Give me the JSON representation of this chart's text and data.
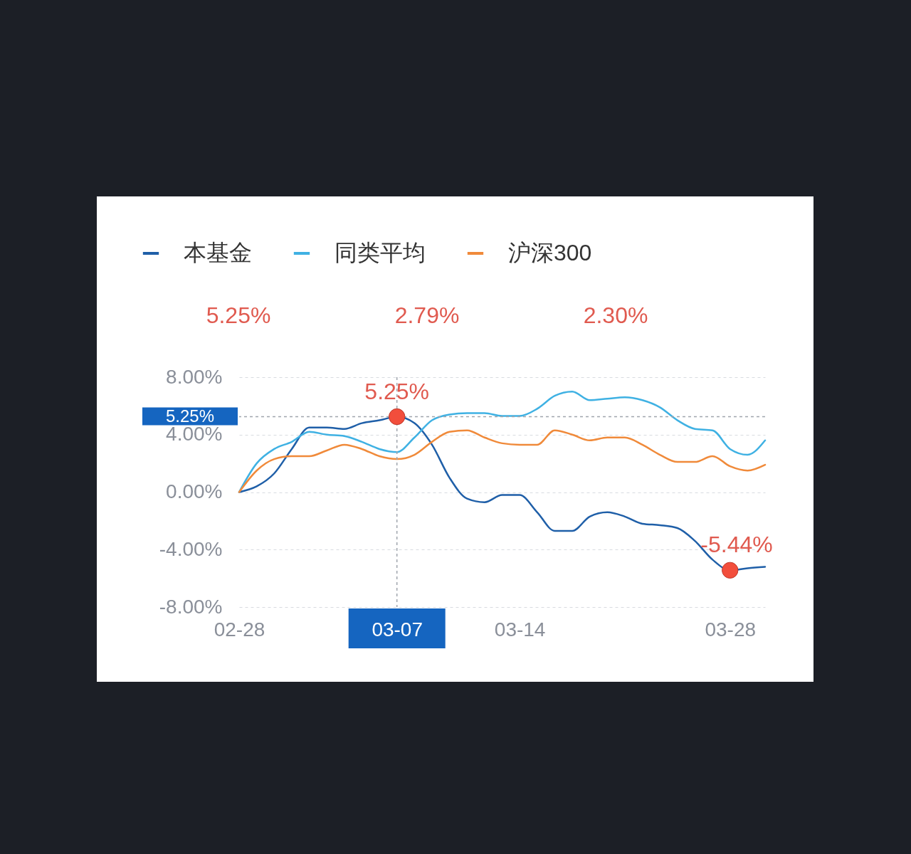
{
  "chart_data": {
    "type": "line",
    "categories": [
      "02-28",
      null,
      null,
      null,
      null,
      null,
      null,
      null,
      null,
      "03-07",
      null,
      null,
      null,
      null,
      null,
      null,
      "03-14",
      null,
      null,
      null,
      null,
      null,
      null,
      null,
      null,
      null,
      null,
      null,
      "03-28",
      null,
      null
    ],
    "series": [
      {
        "name": "本基金",
        "color": "#1f5fa8",
        "values": [
          0,
          0.4,
          1.3,
          3.0,
          4.5,
          4.5,
          4.4,
          4.8,
          5.0,
          5.25,
          4.8,
          3.3,
          1.0,
          -0.45,
          -0.7,
          -0.2,
          -0.2,
          -1.4,
          -2.7,
          -2.7,
          -1.7,
          -1.4,
          -1.7,
          -2.2,
          -2.3,
          -2.5,
          -3.4,
          -4.7,
          -5.44,
          -5.3,
          -5.2
        ]
      },
      {
        "name": "同类平均",
        "color": "#3fb1e3",
        "values": [
          0,
          2.0,
          3.0,
          3.5,
          4.2,
          4.0,
          3.9,
          3.5,
          3.0,
          2.79,
          3.8,
          5.0,
          5.4,
          5.5,
          5.5,
          5.3,
          5.3,
          5.8,
          6.7,
          7.0,
          6.4,
          6.5,
          6.6,
          6.4,
          5.9,
          5.0,
          4.4,
          4.3,
          3.0,
          2.6,
          3.6
        ]
      },
      {
        "name": "沪深300",
        "color": "#f08a3a",
        "values": [
          0,
          1.5,
          2.3,
          2.5,
          2.5,
          2.9,
          3.3,
          3.0,
          2.5,
          2.3,
          2.6,
          3.5,
          4.2,
          4.3,
          3.8,
          3.4,
          3.3,
          3.3,
          4.3,
          4.0,
          3.6,
          3.8,
          3.8,
          3.3,
          2.6,
          2.1,
          2.1,
          2.5,
          1.8,
          1.5,
          1.9
        ]
      }
    ],
    "ylim": [
      -8,
      8
    ],
    "yticks": [
      {
        "value": -8,
        "label": "-8.00%"
      },
      {
        "value": -4,
        "label": "-4.00%"
      },
      {
        "value": 0,
        "label": "0.00%"
      },
      {
        "value": 4,
        "label": "4.00%"
      },
      {
        "value": 8,
        "label": "8.00%"
      }
    ],
    "grid": "y",
    "legend": "top left",
    "line_style": "solid",
    "ref_lines": [
      {
        "axis": "x",
        "value": "03-07",
        "line_style": "dashed",
        "color": "#a0a5ad"
      },
      {
        "axis": "y",
        "value": 5.25,
        "label": "5.25%",
        "line_style": "dashed",
        "color": "#a0a5ad"
      }
    ],
    "annotations": [
      "5.25%",
      "2.79%",
      "2.30%",
      {
        "text": "5.25%",
        "x": "03-07",
        "y": 5.25
      },
      {
        "text": "-5.44%",
        "x": "03-28",
        "y": -5.44
      }
    ]
  }
}
